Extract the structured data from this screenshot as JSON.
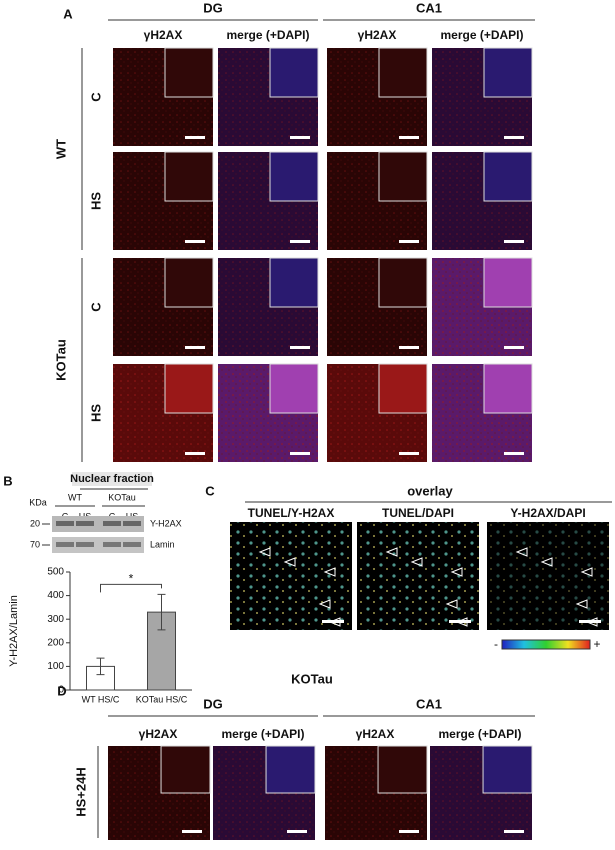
{
  "panel_a": {
    "label": "A",
    "regions": [
      "DG",
      "CA1"
    ],
    "columns": [
      "γH2AX",
      "merge (+DAPI)",
      "γH2AX",
      "merge (+DAPI)"
    ],
    "groups": [
      "WT",
      "KOTau"
    ],
    "conditions": [
      "C",
      "HS",
      "C",
      "HS"
    ]
  },
  "panel_b": {
    "label": "B",
    "blot_title": "Nuclear fraction",
    "kda_label": "KDa",
    "genotypes": [
      "WT",
      "KOTau"
    ],
    "lanes": [
      "C",
      "HS",
      "C",
      "HS"
    ],
    "markers": [
      20,
      70
    ],
    "bands": [
      "Y-H2AX",
      "Lamin"
    ]
  },
  "chart_data": {
    "type": "bar",
    "categories": [
      "WT HS/C",
      "KOTau HS/C"
    ],
    "values": [
      100,
      330
    ],
    "errors": [
      35,
      75
    ],
    "colors": [
      "#ffffff",
      "#a6a6a6"
    ],
    "ylim": [
      0,
      500
    ],
    "yticks": [
      0,
      100,
      200,
      300,
      400,
      500
    ],
    "ylabel": "Y-H2AX/Lamin",
    "annotation": "*"
  },
  "panel_c": {
    "label": "C",
    "title": "overlay",
    "columns": [
      "TUNEL/Y-H2AX",
      "TUNEL/DAPI",
      "Y-H2AX/DAPI"
    ],
    "scale_min": "-",
    "scale_max": "+"
  },
  "panel_d": {
    "label": "D",
    "title": "KOTau",
    "regions": [
      "DG",
      "CA1"
    ],
    "columns": [
      "γH2AX",
      "merge (+DAPI)",
      "γH2AX",
      "merge (+DAPI)"
    ],
    "condition": "HS+24H"
  }
}
